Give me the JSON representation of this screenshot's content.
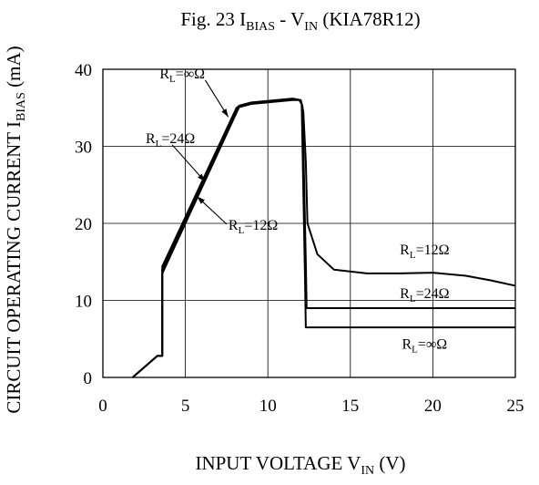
{
  "chart_data": {
    "type": "line",
    "title": {
      "prefix": "Fig. 23  I",
      "sub1": "BIAS",
      "mid": "  -  V",
      "sub2": "IN",
      "suffix": " (KIA78R12)"
    },
    "xlabel": {
      "main": "INPUT VOLTAGE V",
      "sub": "IN",
      "suffix": " (V)"
    },
    "ylabel": {
      "main": "CIRCUIT OPERATING CURRENT  I",
      "sub": "BIAS",
      "suffix": " (mA)"
    },
    "xlim": [
      0,
      25
    ],
    "ylim": [
      0,
      40
    ],
    "x_ticks": [
      "0",
      "5",
      "10",
      "15",
      "20",
      "25"
    ],
    "y_ticks": [
      "0",
      "10",
      "20",
      "30",
      "40"
    ],
    "grid": true,
    "series": [
      {
        "name": "RL=∞Ω",
        "label": {
          "main": "R",
          "sub": "L",
          "value": "=∞Ω"
        },
        "points": [
          [
            1.8,
            0
          ],
          [
            3.3,
            2.8
          ],
          [
            3.6,
            2.8
          ],
          [
            3.6,
            14.4
          ],
          [
            8.1,
            35
          ],
          [
            9,
            35.5
          ],
          [
            11.5,
            36
          ],
          [
            11.9,
            36
          ],
          [
            12.05,
            35.5
          ],
          [
            12.25,
            13
          ],
          [
            12.3,
            6.5
          ],
          [
            25,
            6.5
          ]
        ]
      },
      {
        "name": "RL=24Ω",
        "label": {
          "main": "R",
          "sub": "L",
          "value": "=24Ω"
        },
        "points": [
          [
            1.8,
            0
          ],
          [
            3.3,
            2.8
          ],
          [
            3.6,
            2.8
          ],
          [
            3.6,
            14
          ],
          [
            8.2,
            35.2
          ],
          [
            9,
            35.6
          ],
          [
            11.5,
            36.1
          ],
          [
            11.95,
            36
          ],
          [
            12.1,
            35.2
          ],
          [
            12.3,
            15
          ],
          [
            12.35,
            9
          ],
          [
            25,
            9
          ]
        ]
      },
      {
        "name": "RL=12Ω",
        "label": {
          "main": "R",
          "sub": "L",
          "value": "=12Ω"
        },
        "points": [
          [
            1.8,
            0
          ],
          [
            3.3,
            2.8
          ],
          [
            3.6,
            2.8
          ],
          [
            3.6,
            13.5
          ],
          [
            8.3,
            35.3
          ],
          [
            9,
            35.7
          ],
          [
            11.5,
            36.2
          ],
          [
            12,
            36
          ],
          [
            12.15,
            34.5
          ],
          [
            12.3,
            28
          ],
          [
            12.4,
            20
          ],
          [
            13,
            16
          ],
          [
            14,
            14
          ],
          [
            16,
            13.5
          ],
          [
            18,
            13.5
          ],
          [
            20,
            13.6
          ],
          [
            22,
            13.2
          ],
          [
            23.5,
            12.6
          ],
          [
            25,
            11.9
          ]
        ]
      }
    ],
    "annotations": [
      {
        "series": "RL=∞Ω",
        "arrow_from": [
          6.2,
          38.6
        ],
        "arrow_to": [
          7.6,
          33.8
        ]
      },
      {
        "series": "RL=24Ω",
        "arrow_from": [
          4.2,
          30.2
        ],
        "arrow_to": [
          6.2,
          25.4
        ]
      },
      {
        "series": "RL=12Ω",
        "arrow_from": [
          7.5,
          19.9
        ],
        "arrow_to": [
          5.7,
          23.5
        ]
      },
      {
        "series": "RL=12Ω",
        "at": [
          19.5,
          16
        ]
      },
      {
        "series": "RL=24Ω",
        "at": [
          19.5,
          10.3
        ]
      },
      {
        "series": "RL=∞Ω",
        "at": [
          19.5,
          3.7
        ]
      }
    ]
  }
}
